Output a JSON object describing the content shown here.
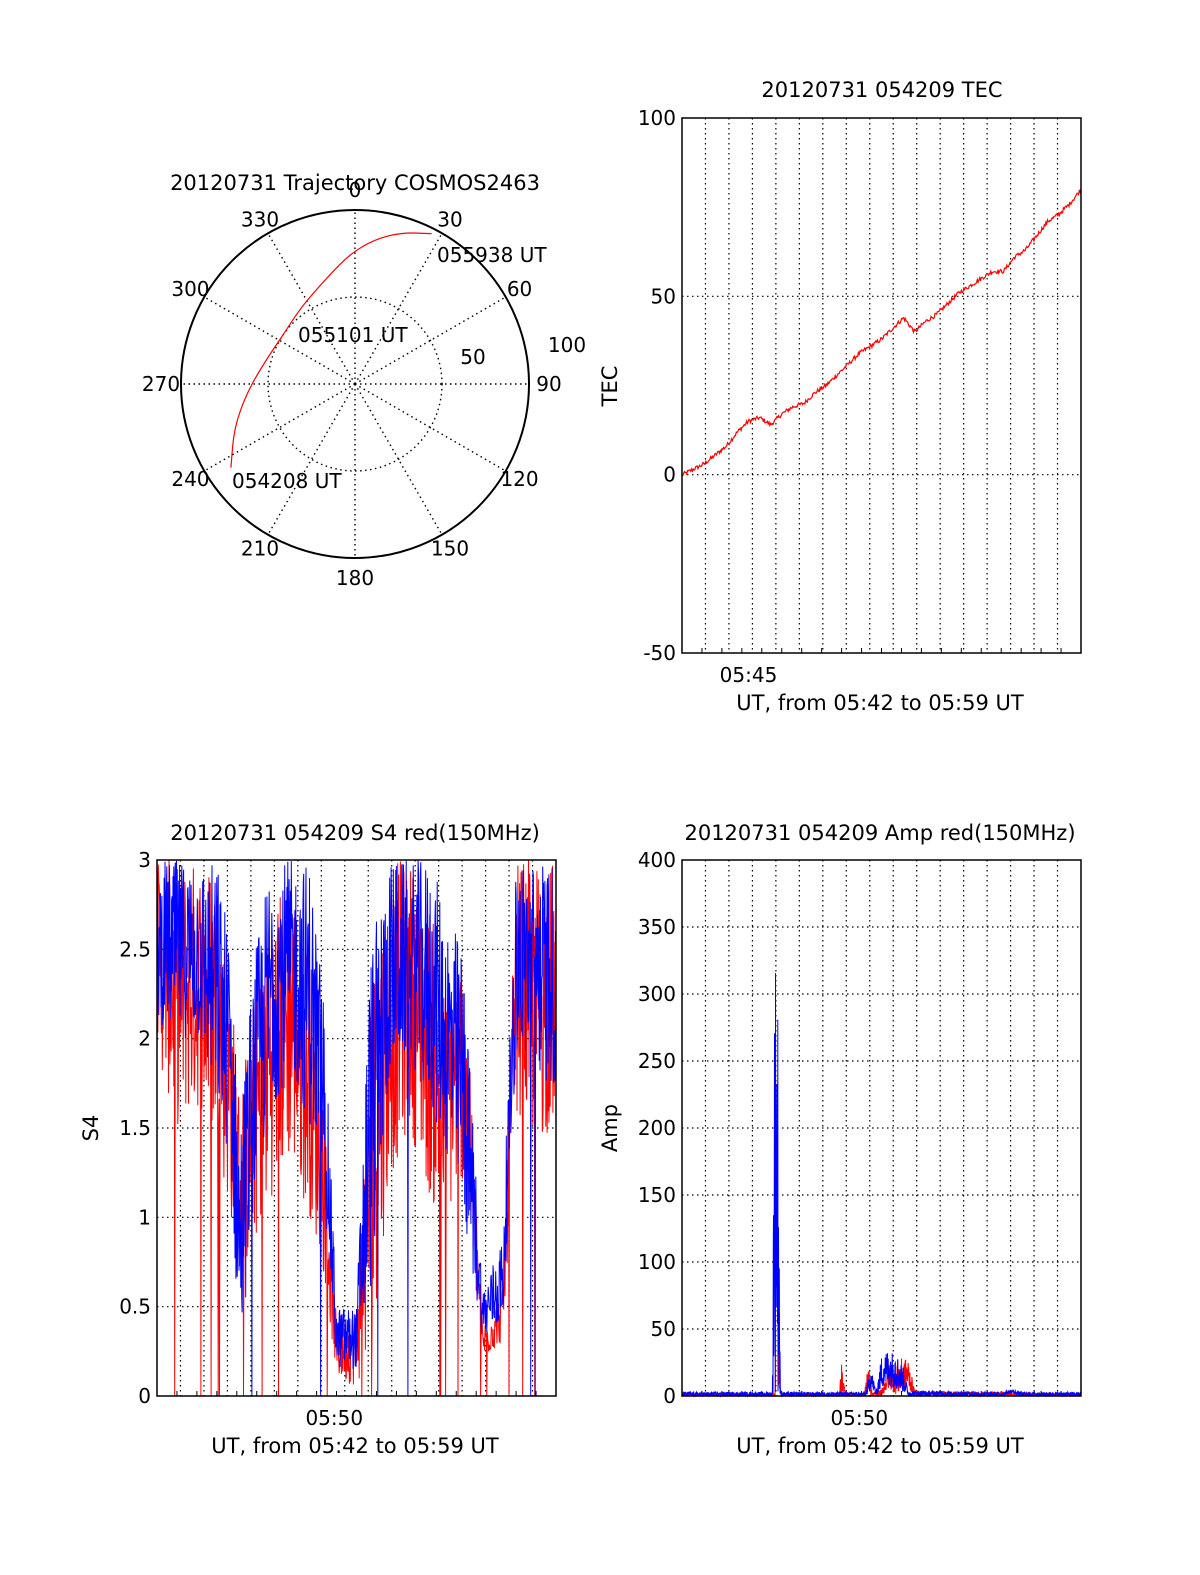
{
  "chart_data": [
    {
      "type": "polar",
      "title": "20120731 Trajectory COSMOS2463",
      "angle_labels": [
        "0",
        "30",
        "60",
        "90",
        "120",
        "150",
        "180",
        "210",
        "240",
        "270",
        "300",
        "330"
      ],
      "radial_labels": [
        "50",
        "100"
      ],
      "rlim": [
        0,
        100
      ],
      "grid": true,
      "series": [
        {
          "color": "#ff0000",
          "points": [
            {
              "azimuth": 236,
              "r": 86,
              "time": "054208 UT"
            },
            {
              "azimuth": 250,
              "r": 74
            },
            {
              "azimuth": 266,
              "r": 62
            },
            {
              "azimuth": 285,
              "r": 53
            },
            {
              "azimuth": 305,
              "r": 50,
              "time": "055101 UT"
            },
            {
              "azimuth": 325,
              "r": 54
            },
            {
              "azimuth": 345,
              "r": 63
            },
            {
              "azimuth": 358,
              "r": 75
            },
            {
              "azimuth": 8,
              "r": 84
            },
            {
              "azimuth": 17,
              "r": 91
            },
            {
              "azimuth": 27,
              "r": 97,
              "time": "055938 UT"
            }
          ]
        }
      ],
      "annotations": [
        "054208 UT",
        "055101 UT",
        "055938 UT"
      ]
    },
    {
      "type": "line",
      "title": "20120731 054209 TEC",
      "xlabel": "UT, from 05:42 to 05:59 UT",
      "ylabel": "TEC",
      "x_tick_labels": [
        {
          "x": 5.75,
          "label": "05:45"
        }
      ],
      "xlim": [
        5.7,
        6.0
      ],
      "ylim": [
        -50,
        100
      ],
      "y_ticks": [
        100,
        50,
        0,
        -50
      ],
      "grid": true,
      "series": [
        {
          "color": "#ff0000",
          "x": [
            5.7003,
            5.7167,
            5.7333,
            5.7417,
            5.75,
            5.7583,
            5.7667,
            5.775,
            5.7833,
            5.7917,
            5.8,
            5.8083,
            5.8167,
            5.825,
            5.8333,
            5.8417,
            5.85,
            5.8583,
            5.8667,
            5.875,
            5.8833,
            5.8917,
            5.9,
            5.9083,
            5.9167,
            5.925,
            5.9333,
            5.9417,
            5.95,
            5.9583,
            5.9667,
            5.975,
            5.9833,
            5.9917,
            6.0
          ],
          "y": [
            0,
            3,
            8,
            12,
            15,
            16,
            14,
            17,
            19,
            20,
            23,
            25,
            28,
            31,
            34,
            36,
            38,
            41,
            44,
            40,
            43,
            45,
            48,
            51,
            53,
            55,
            57,
            57,
            61,
            63,
            67,
            71,
            73,
            76,
            80
          ]
        }
      ]
    },
    {
      "type": "line",
      "title": "20120731 054209 S4 red(150MHz)",
      "xlabel": "UT, from 05:42 to 05:59 UT",
      "ylabel": "S4",
      "x_tick_labels": [
        {
          "x": 5.8333,
          "label": "05:50"
        }
      ],
      "xlim": [
        5.7,
        6.0
      ],
      "ylim": [
        0,
        3
      ],
      "y_ticks": [
        3,
        2.5,
        2,
        1.5,
        1,
        0.5,
        0
      ],
      "grid": true,
      "series": [
        {
          "color": "#ff0000",
          "envelope": [
            {
              "x": 5.7,
              "lo": 1.9,
              "hi": 3.0
            },
            {
              "x": 5.715,
              "lo": 1.5,
              "hi": 3.0
            },
            {
              "x": 5.73,
              "lo": 1.6,
              "hi": 3.0
            },
            {
              "x": 5.745,
              "lo": 1.4,
              "hi": 3.0
            },
            {
              "x": 5.755,
              "lo": 1.0,
              "hi": 2.4
            },
            {
              "x": 5.762,
              "lo": 0.6,
              "hi": 1.7
            },
            {
              "x": 5.772,
              "lo": 0.8,
              "hi": 2.2
            },
            {
              "x": 5.785,
              "lo": 1.1,
              "hi": 2.7
            },
            {
              "x": 5.8,
              "lo": 1.3,
              "hi": 3.0
            },
            {
              "x": 5.815,
              "lo": 1.0,
              "hi": 2.5
            },
            {
              "x": 5.825,
              "lo": 0.7,
              "hi": 1.8
            },
            {
              "x": 5.835,
              "lo": 0.1,
              "hi": 0.4
            },
            {
              "x": 5.85,
              "lo": 0.05,
              "hi": 0.5
            },
            {
              "x": 5.86,
              "lo": 0.2,
              "hi": 2.3
            },
            {
              "x": 5.875,
              "lo": 1.2,
              "hi": 3.0
            },
            {
              "x": 5.89,
              "lo": 1.5,
              "hi": 3.0
            },
            {
              "x": 5.905,
              "lo": 1.1,
              "hi": 2.8
            },
            {
              "x": 5.915,
              "lo": 0.9,
              "hi": 2.3
            },
            {
              "x": 5.93,
              "lo": 1.2,
              "hi": 2.6
            },
            {
              "x": 5.945,
              "lo": 0.2,
              "hi": 0.4
            },
            {
              "x": 5.96,
              "lo": 0.3,
              "hi": 0.6
            },
            {
              "x": 5.97,
              "lo": 1.6,
              "hi": 3.0
            },
            {
              "x": 5.985,
              "lo": 1.4,
              "hi": 3.0
            },
            {
              "x": 6.0,
              "lo": 1.5,
              "hi": 3.0
            }
          ]
        },
        {
          "color": "#0000ff",
          "envelope": [
            {
              "x": 5.7,
              "lo": 2.1,
              "hi": 3.0
            },
            {
              "x": 5.715,
              "lo": 2.0,
              "hi": 3.0
            },
            {
              "x": 5.73,
              "lo": 2.0,
              "hi": 3.0
            },
            {
              "x": 5.745,
              "lo": 1.6,
              "hi": 3.0
            },
            {
              "x": 5.755,
              "lo": 1.3,
              "hi": 2.6
            },
            {
              "x": 5.762,
              "lo": 0.15,
              "hi": 1.5
            },
            {
              "x": 5.772,
              "lo": 1.0,
              "hi": 2.4
            },
            {
              "x": 5.785,
              "lo": 1.6,
              "hi": 3.0
            },
            {
              "x": 5.8,
              "lo": 1.8,
              "hi": 3.0
            },
            {
              "x": 5.815,
              "lo": 1.5,
              "hi": 3.0
            },
            {
              "x": 5.825,
              "lo": 1.2,
              "hi": 2.3
            },
            {
              "x": 5.835,
              "lo": 0.15,
              "hi": 0.5
            },
            {
              "x": 5.85,
              "lo": 0.15,
              "hi": 0.5
            },
            {
              "x": 5.86,
              "lo": 0.5,
              "hi": 2.5
            },
            {
              "x": 5.875,
              "lo": 1.8,
              "hi": 3.0
            },
            {
              "x": 5.89,
              "lo": 1.9,
              "hi": 3.0
            },
            {
              "x": 5.905,
              "lo": 1.6,
              "hi": 3.0
            },
            {
              "x": 5.915,
              "lo": 1.4,
              "hi": 2.8
            },
            {
              "x": 5.93,
              "lo": 1.0,
              "hi": 2.5
            },
            {
              "x": 5.945,
              "lo": 0.3,
              "hi": 0.6
            },
            {
              "x": 5.96,
              "lo": 0.4,
              "hi": 0.9
            },
            {
              "x": 5.97,
              "lo": 1.9,
              "hi": 3.0
            },
            {
              "x": 5.985,
              "lo": 1.8,
              "hi": 3.0
            },
            {
              "x": 6.0,
              "lo": 1.7,
              "hi": 3.0
            }
          ]
        }
      ]
    },
    {
      "type": "line",
      "title": "20120731 054209 Amp red(150MHz)",
      "xlabel": "UT, from 05:42 to 05:59 UT",
      "ylabel": "Amp",
      "x_tick_labels": [
        {
          "x": 5.8333,
          "label": "05:50"
        }
      ],
      "xlim": [
        5.7,
        6.0
      ],
      "ylim": [
        0,
        400
      ],
      "y_ticks": [
        400,
        350,
        300,
        250,
        200,
        150,
        100,
        50,
        0
      ],
      "grid": true,
      "series": [
        {
          "color": "#ff0000",
          "envelope": [
            {
              "x": 5.7,
              "lo": 0,
              "hi": 2
            },
            {
              "x": 5.77,
              "lo": 0,
              "hi": 2
            },
            {
              "x": 5.771,
              "lo": 80,
              "hi": 225
            },
            {
              "x": 5.773,
              "lo": 0,
              "hi": 10
            },
            {
              "x": 5.775,
              "lo": 0,
              "hi": 2
            },
            {
              "x": 5.818,
              "lo": 0,
              "hi": 2
            },
            {
              "x": 5.82,
              "lo": 0,
              "hi": 25
            },
            {
              "x": 5.823,
              "lo": 0,
              "hi": 2
            },
            {
              "x": 5.837,
              "lo": 0,
              "hi": 2
            },
            {
              "x": 5.84,
              "lo": 0,
              "hi": 24
            },
            {
              "x": 5.843,
              "lo": 0,
              "hi": 2
            },
            {
              "x": 5.85,
              "lo": 0,
              "hi": 5
            },
            {
              "x": 5.856,
              "lo": 5,
              "hi": 25
            },
            {
              "x": 5.862,
              "lo": 0,
              "hi": 28
            },
            {
              "x": 5.87,
              "lo": 5,
              "hi": 28
            },
            {
              "x": 5.875,
              "lo": 0,
              "hi": 4
            },
            {
              "x": 6.0,
              "lo": 0,
              "hi": 2
            }
          ]
        },
        {
          "color": "#0000ff",
          "envelope": [
            {
              "x": 5.7,
              "lo": 0,
              "hi": 3
            },
            {
              "x": 5.768,
              "lo": 0,
              "hi": 3
            },
            {
              "x": 5.7695,
              "lo": 0,
              "hi": 357
            },
            {
              "x": 5.772,
              "lo": 0,
              "hi": 300
            },
            {
              "x": 5.774,
              "lo": 0,
              "hi": 3
            },
            {
              "x": 5.838,
              "lo": 0,
              "hi": 3
            },
            {
              "x": 5.842,
              "lo": 5,
              "hi": 22
            },
            {
              "x": 5.846,
              "lo": 0,
              "hi": 4
            },
            {
              "x": 5.85,
              "lo": 5,
              "hi": 30
            },
            {
              "x": 5.855,
              "lo": 8,
              "hi": 35
            },
            {
              "x": 5.861,
              "lo": 5,
              "hi": 32
            },
            {
              "x": 5.867,
              "lo": 2,
              "hi": 20
            },
            {
              "x": 5.87,
              "lo": 0,
              "hi": 4
            },
            {
              "x": 5.94,
              "lo": 0,
              "hi": 3
            },
            {
              "x": 5.948,
              "lo": 2,
              "hi": 5
            },
            {
              "x": 5.955,
              "lo": 0,
              "hi": 3
            },
            {
              "x": 6.0,
              "lo": 0,
              "hi": 3
            }
          ]
        }
      ]
    }
  ]
}
